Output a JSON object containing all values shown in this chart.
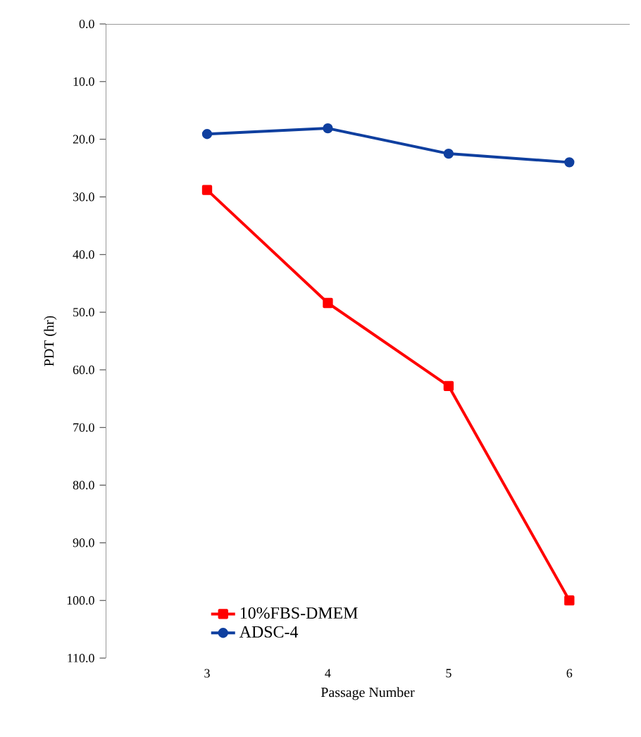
{
  "chart_data": {
    "type": "line",
    "xlabel": "Passage Number",
    "ylabel": "PDT (hr)",
    "categories": [
      "3",
      "4",
      "5",
      "6"
    ],
    "series": [
      {
        "name": "10%FBS-DMEM",
        "color": "#ff0000",
        "marker": "square",
        "values": [
          28.8,
          48.4,
          62.8,
          100.0
        ]
      },
      {
        "name": "ADSC-4",
        "color": "#0f3f9f",
        "marker": "circle",
        "values": [
          19.1,
          18.1,
          22.5,
          24.0
        ]
      }
    ],
    "ylim": [
      110,
      0
    ],
    "yticks": [
      {
        "value": 0,
        "label": "0.0"
      },
      {
        "value": 10,
        "label": "10.0"
      },
      {
        "value": 20,
        "label": "20.0"
      },
      {
        "value": 30,
        "label": "30.0"
      },
      {
        "value": 40,
        "label": "40.0"
      },
      {
        "value": 50,
        "label": "50.0"
      },
      {
        "value": 60,
        "label": "60.0"
      },
      {
        "value": 70,
        "label": "70.0"
      },
      {
        "value": 80,
        "label": "80.0"
      },
      {
        "value": 90,
        "label": "90.0"
      },
      {
        "value": 100,
        "label": "100.0"
      },
      {
        "value": 110,
        "label": "110.0"
      }
    ],
    "grid": false,
    "legend": "bottom",
    "line_style": "solid"
  }
}
